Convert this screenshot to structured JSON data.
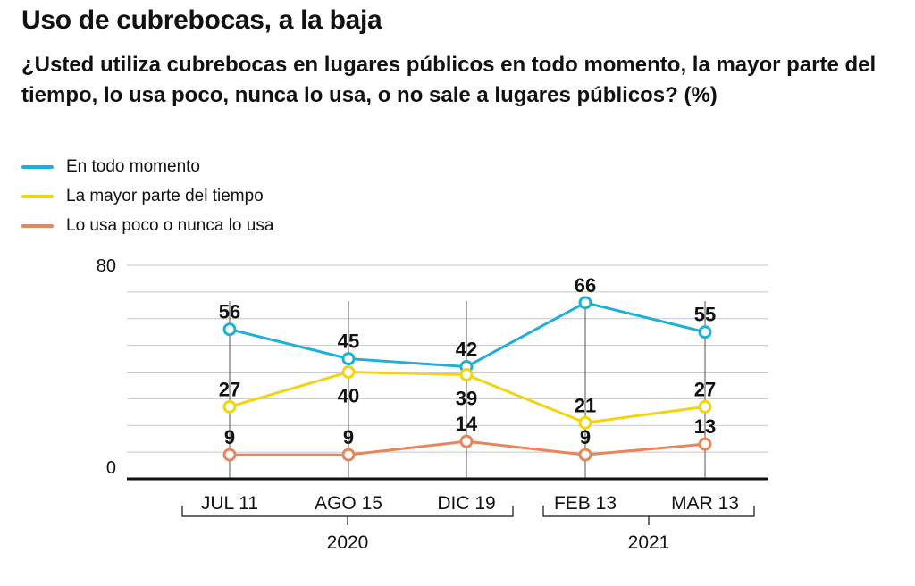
{
  "title": "Uso de cubrebocas, a la baja",
  "subtitle": "¿Usted utiliza cubrebocas en lugares públicos en todo momento, la mayor parte del tiempo, lo usa poco, nunca lo usa, o no sale a lugares públicos? (%)",
  "chart_data": {
    "type": "line",
    "title": "Uso de cubrebocas, a la baja",
    "subtitle": "¿Usted utiliza cubrebocas en lugares públicos en todo momento, la mayor parte del tiempo, lo usa poco, nunca lo usa, o no sale a lugares públicos? (%)",
    "categories": [
      "JUL 11",
      "AGO 15",
      "DIC 19",
      "FEB 13",
      "MAR 13"
    ],
    "groups": [
      {
        "label": "2020",
        "categories": [
          "JUL 11",
          "AGO 15",
          "DIC 19"
        ]
      },
      {
        "label": "2021",
        "categories": [
          "FEB 13",
          "MAR 13"
        ]
      }
    ],
    "ylim": [
      0,
      80
    ],
    "yticks": [
      0,
      80
    ],
    "grid": true,
    "legend_position": "top-left",
    "series": [
      {
        "name": "En todo momento",
        "color": "#1fb0d9",
        "values": [
          56,
          45,
          42,
          66,
          55
        ]
      },
      {
        "name": "La mayor parte del tiempo",
        "color": "#f2d40f",
        "values": [
          27,
          40,
          39,
          21,
          27
        ]
      },
      {
        "name": "Lo usa poco o nunca lo usa",
        "color": "#e8855a",
        "values": [
          9,
          9,
          14,
          9,
          13
        ]
      }
    ]
  }
}
